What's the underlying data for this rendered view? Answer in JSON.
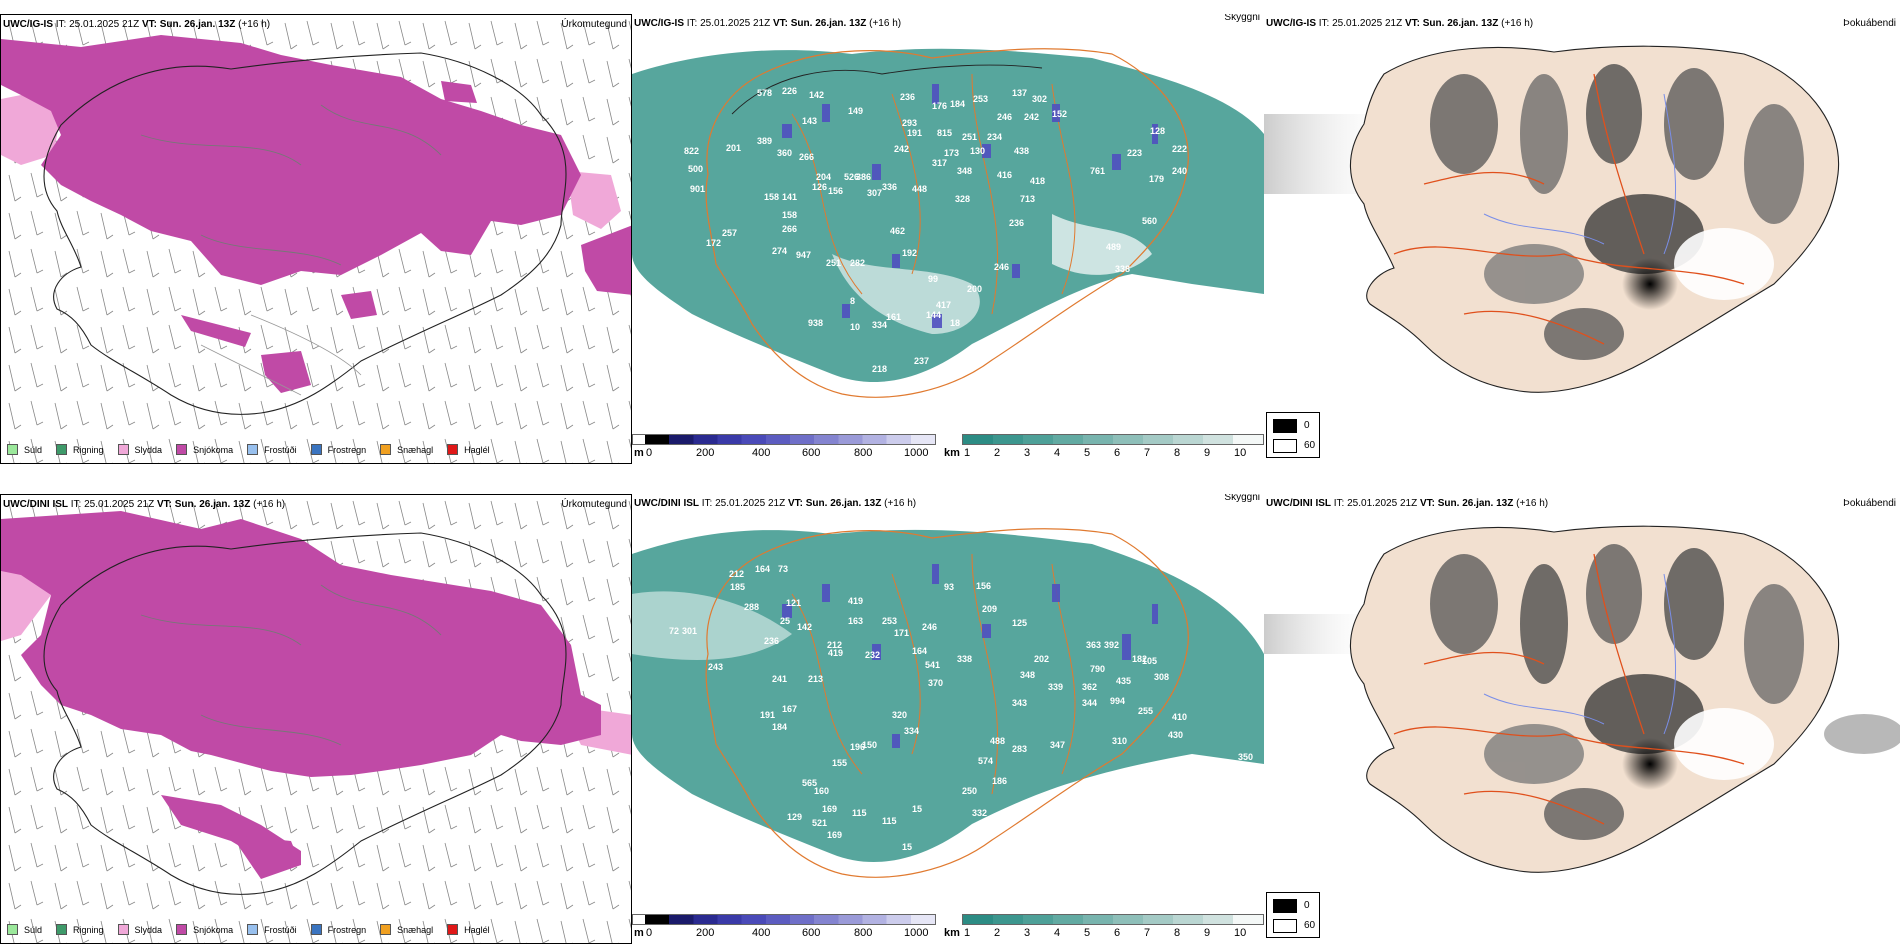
{
  "rows": [
    {
      "model": "UWC/IG-IS",
      "precip": {
        "model": "UWC/IG-IS",
        "it_label": "IT:",
        "it": "25.01.2025 21Z",
        "vt_label": "VT:",
        "vt": "Sun. 26.jan. 13Z",
        "lead": "(+16 h)",
        "panel_label": "Úrkomutegund"
      },
      "cloud": {
        "model": "UWC/IG-IS",
        "it_label": "IT:",
        "it": "25.01.2025 21Z",
        "vt_label": "VT:",
        "vt": "Sun. 26.jan. 13Z",
        "lead": "(+16 h)",
        "panel_label": "Skyggni",
        "peaks": [
          "226",
          "142",
          "578",
          "149",
          "143",
          "236",
          "176",
          "184",
          "253",
          "137",
          "302",
          "246",
          "242",
          "152",
          "201",
          "389",
          "266",
          "293",
          "191",
          "815",
          "251",
          "234",
          "128",
          "360",
          "526",
          "242",
          "173",
          "223",
          "222",
          "204",
          "317",
          "130",
          "438",
          "761",
          "179",
          "240",
          "386",
          "307",
          "348",
          "418",
          "416",
          "713",
          "126",
          "156",
          "336",
          "448",
          "328",
          "158",
          "141",
          "257",
          "266",
          "462",
          "560",
          "236",
          "158",
          "274",
          "947",
          "192",
          "489",
          "251",
          "282",
          "246",
          "338",
          "99",
          "200",
          "8",
          "417",
          "938",
          "161",
          "144",
          "18",
          "10",
          "334",
          "237",
          "218",
          "62",
          "822",
          "500",
          "901",
          "172"
        ]
      },
      "dew": {
        "model": "UWC/IG-IS",
        "it_label": "IT:",
        "it": "25.01.2025 21Z",
        "vt_label": "VT:",
        "vt": "Sun. 26.jan. 13Z",
        "lead": "(+16 h)",
        "panel_label": "Þokuábendi",
        "legend": [
          "0",
          "60"
        ]
      }
    },
    {
      "model": "UWC/DINI ISL",
      "precip": {
        "model": "UWC/DINI ISL",
        "it_label": "IT:",
        "it": "25.01.2025 21Z",
        "vt_label": "VT:",
        "vt": "Sun. 26.jan. 13Z",
        "lead": "(+16 h)",
        "panel_label": "Úrkomutegund"
      },
      "cloud": {
        "model": "UWC/DINI ISL",
        "it_label": "IT:",
        "it": "25.01.2025 21Z",
        "vt_label": "VT:",
        "vt": "Sun. 26.jan. 13Z",
        "lead": "(+16 h)",
        "panel_label": "Skyggni",
        "peaks": [
          "212",
          "164",
          "73",
          "185",
          "288",
          "121",
          "419",
          "93",
          "156",
          "301",
          "25",
          "142",
          "163",
          "253",
          "171",
          "125",
          "209",
          "72",
          "243",
          "419",
          "232",
          "164",
          "541",
          "338",
          "202",
          "363",
          "392",
          "105",
          "246",
          "236",
          "212",
          "182",
          "308",
          "241",
          "213",
          "370",
          "348",
          "790",
          "435",
          "410",
          "191",
          "320",
          "334",
          "339",
          "362",
          "994",
          "255",
          "184",
          "167",
          "343",
          "488",
          "283",
          "347",
          "344",
          "430",
          "310",
          "155",
          "196",
          "574",
          "186",
          "350",
          "565",
          "150",
          "160",
          "169",
          "115",
          "15",
          "332",
          "521",
          "129",
          "169",
          "115",
          "250",
          "60",
          "63",
          "15"
        ]
      },
      "dew": {
        "model": "UWC/DINI ISL",
        "it_label": "IT:",
        "it": "25.01.2025 21Z",
        "vt_label": "VT:",
        "vt": "Sun. 26.jan. 13Z",
        "lead": "(+16 h)",
        "panel_label": "Þokuábendi",
        "legend": [
          "0",
          "60"
        ]
      }
    }
  ],
  "precip_legend": [
    {
      "label": "Súld",
      "color": "#9be89b"
    },
    {
      "label": "Rigning",
      "color": "#3e9a6a"
    },
    {
      "label": "Slydda",
      "color": "#f0a8d8"
    },
    {
      "label": "Snjókoma",
      "color": "#c04aa6"
    },
    {
      "label": "Frostúði",
      "color": "#98c0ee"
    },
    {
      "label": "Frostregn",
      "color": "#3a74c0"
    },
    {
      "label": "Snæhagl",
      "color": "#f0a020"
    },
    {
      "label": "Haglél",
      "color": "#e01818"
    }
  ],
  "height_bar": {
    "unit": "m",
    "ticks": [
      "0",
      "200",
      "400",
      "600",
      "800",
      "1000"
    ],
    "colors": [
      "#ffffff",
      "#000000",
      "#1a1a6a",
      "#2a2a90",
      "#3a3aa8",
      "#4a4ab8",
      "#5c5cc0",
      "#6f6fc8",
      "#8484d0",
      "#9a9ad8",
      "#b2b2e2",
      "#ccccec",
      "#e6e6f6"
    ]
  },
  "vis_bar": {
    "unit": "km",
    "ticks": [
      "1",
      "2",
      "3",
      "4",
      "5",
      "6",
      "7",
      "8",
      "9",
      "10"
    ],
    "colors": [
      "#2c8c84",
      "#3c968e",
      "#4ea098",
      "#62aaa2",
      "#78b4ae",
      "#8ebfb9",
      "#a4cac5",
      "#bad6d2",
      "#d0e2df",
      "#e8f0ee"
    ]
  },
  "colors": {
    "snow": "#c04aa6",
    "sleet": "#f0a8d8",
    "cloud_teal": "#3a968c",
    "land_beige": "#f2e0d0",
    "roads": "#e0501c",
    "rivers": "#7a8ee8"
  }
}
